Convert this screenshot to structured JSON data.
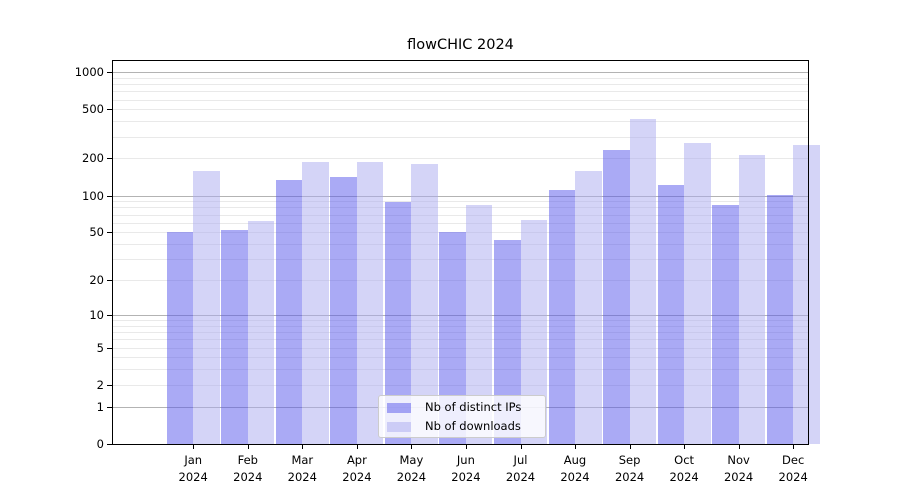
{
  "title": "flowCHIC 2024",
  "chart_data": {
    "type": "bar",
    "title": "flowCHIC 2024",
    "categories": [
      "Jan",
      "Feb",
      "Mar",
      "Apr",
      "May",
      "Jun",
      "Jul",
      "Aug",
      "Sep",
      "Oct",
      "Nov",
      "Dec"
    ],
    "x_tick_second_line": "2024",
    "series": [
      {
        "name": "Nb of distinct IPs",
        "color": "rgba(85,85,235,0.5)",
        "values": [
          50,
          52,
          133,
          141,
          89,
          50,
          43,
          110,
          235,
          122,
          83,
          101
        ]
      },
      {
        "name": "Nb of downloads",
        "color": "rgba(170,170,240,0.5)",
        "values": [
          158,
          62,
          187,
          188,
          179,
          83,
          63,
          158,
          420,
          265,
          215,
          258
        ]
      }
    ],
    "yscale": "log1p",
    "yticks": [
      0,
      1,
      2,
      5,
      10,
      20,
      50,
      100,
      200,
      500,
      1000
    ],
    "major_grid_values": [
      1,
      10,
      100,
      1000
    ],
    "minor_grid_values": [
      2,
      3,
      4,
      5,
      6,
      7,
      8,
      9,
      20,
      30,
      40,
      50,
      60,
      70,
      80,
      90,
      200,
      300,
      400,
      500,
      600,
      700,
      800,
      900
    ],
    "ylim": [
      0,
      1250
    ],
    "grid": true,
    "legend_position": "lower center",
    "colors": {
      "major_grid": "#b3b3b3",
      "minor_grid": "#e9e9e9",
      "spine": "#000000",
      "legend_border": "#cccccc",
      "bar_ips": "rgba(85,85,235,0.5)",
      "bar_downloads": "rgba(170,170,240,0.5)"
    }
  }
}
